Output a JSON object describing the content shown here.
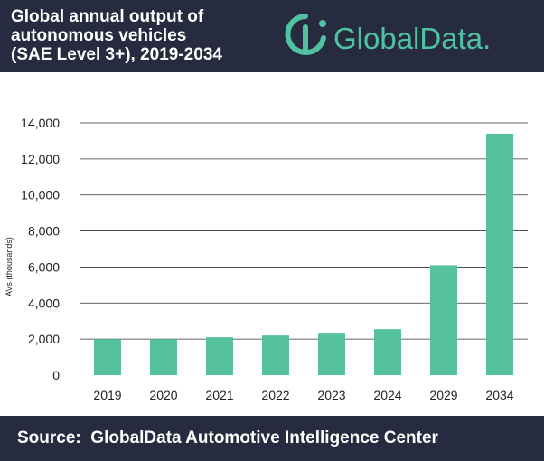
{
  "header": {
    "title_lines": [
      "Global annual output of",
      "autonomous vehicles",
      "(SAE Level 3+), 2019-2034"
    ],
    "logo_text": "GlobalData."
  },
  "footer": {
    "source": "Source:  GlobalData Automotive Intelligence Center"
  },
  "colors": {
    "header_bg": "#272b3f",
    "bar": "#55c29b",
    "accent": "#4fc3a1"
  },
  "chart_data": {
    "type": "bar",
    "title": "Global annual output of autonomous vehicles (SAE Level 3+), 2019-2034",
    "categories": [
      "2019",
      "2020",
      "2021",
      "2022",
      "2023",
      "2024",
      "2029",
      "2034"
    ],
    "values": [
      2000,
      2000,
      2100,
      2200,
      2350,
      2550,
      6100,
      13400
    ],
    "ylabel": "AVs (thousands)",
    "xlabel": "",
    "ylim": [
      0,
      14000
    ],
    "yticks": [
      0,
      2000,
      4000,
      6000,
      8000,
      10000,
      12000,
      14000
    ],
    "ytick_labels": [
      "0",
      "2,000",
      "4,000",
      "6,000",
      "8,000",
      "10,000",
      "12,000",
      "14,000"
    ],
    "grid": true,
    "legend": "none"
  }
}
